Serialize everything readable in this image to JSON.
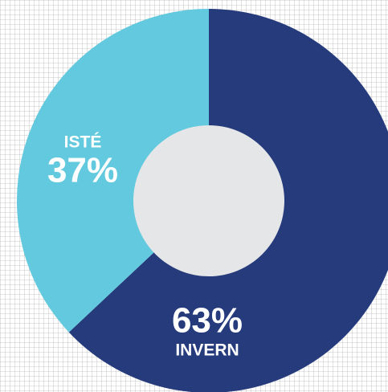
{
  "chart_data": {
    "type": "donut",
    "categories": [
      "INVERN",
      "ISTÉ"
    ],
    "values": [
      63,
      37
    ],
    "value_labels": [
      "63%",
      "37%"
    ],
    "colors": [
      "#253b7c",
      "#62c9de"
    ]
  }
}
